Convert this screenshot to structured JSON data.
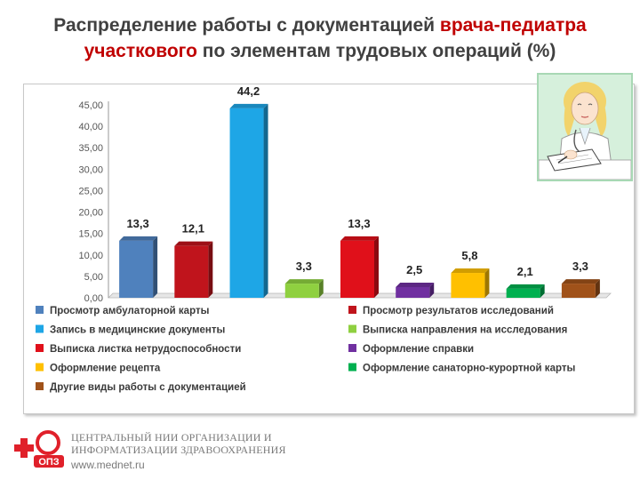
{
  "title": {
    "line1_part1": "Распределение работы с документацией ",
    "line1_highlight": "врача-педиатра",
    "line2_highlight": "участкового",
    "line2_part2": " по элементам трудовых операций (%)"
  },
  "chart_data": {
    "type": "bar",
    "title": "Распределение работы с документацией врача-педиатра участкового по элементам трудовых операций (%)",
    "ylim": [
      0,
      45
    ],
    "yticks": [
      "0,00",
      "5,00",
      "10,00",
      "15,00",
      "20,00",
      "25,00",
      "30,00",
      "35,00",
      "40,00",
      "45,00"
    ],
    "legend_position": "bottom",
    "series": [
      {
        "name": "Просмотр амбулаторной карты",
        "value": 13.3,
        "label": "13,3",
        "color": "#4f81bd"
      },
      {
        "name": "Просмотр результатов исследований",
        "value": 12.1,
        "label": "12,1",
        "color": "#c0141c"
      },
      {
        "name": "Запись в медицинские документы",
        "value": 44.2,
        "label": "44,2",
        "color": "#1ea6e6"
      },
      {
        "name": "Выписка направления на исследования",
        "value": 3.3,
        "label": "3,3",
        "color": "#8fd040"
      },
      {
        "name": "Выписка листка нетрудоспособности",
        "value": 13.3,
        "label": "13,3",
        "color": "#e0101a"
      },
      {
        "name": "Оформление справки",
        "value": 2.5,
        "label": "2,5",
        "color": "#7030a0"
      },
      {
        "name": "Оформление рецепта",
        "value": 5.8,
        "label": "5,8",
        "color": "#ffc000"
      },
      {
        "name": "Оформление санаторно-курортной карты",
        "value": 2.1,
        "label": "2,1",
        "color": "#00b050"
      },
      {
        "name": "Другие виды работы с документацией",
        "value": 3.3,
        "label": "3,3",
        "color": "#a0521a"
      }
    ]
  },
  "footer": {
    "logo_text": "ОПЗ",
    "line1": "ЦЕНТРАЛЬНЫЙ НИИ ОРГАНИЗАЦИИ И",
    "line2": "ИНФОРМАТИЗАЦИИ ЗДРАВООХРАНЕНИЯ",
    "url": "www.mednet.ru"
  }
}
